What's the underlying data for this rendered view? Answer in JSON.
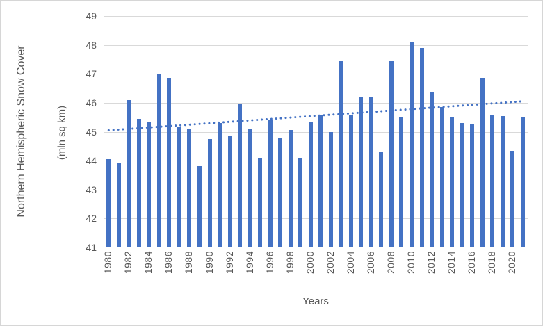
{
  "chart_data": {
    "type": "bar",
    "title": "Northern Hemispheric Snow Cover",
    "ylabel": "(mln sq km)",
    "xlabel": "Years",
    "ylim": [
      41,
      49
    ],
    "yticks": [
      49,
      48,
      47,
      46,
      45,
      44,
      43,
      42,
      41
    ],
    "xtick_labels": [
      "1980",
      "1982",
      "1984",
      "1986",
      "1988",
      "1990",
      "1992",
      "1994",
      "1996",
      "1998",
      "2000",
      "2002",
      "2004",
      "2006",
      "2008",
      "2010",
      "2012",
      "2014",
      "2016",
      "2018",
      "2020"
    ],
    "grid": "horizontal",
    "legend": "none",
    "years": [
      1980,
      1981,
      1982,
      1983,
      1984,
      1985,
      1986,
      1987,
      1988,
      1989,
      1990,
      1991,
      1992,
      1993,
      1994,
      1995,
      1996,
      1997,
      1998,
      1999,
      2000,
      2001,
      2002,
      2003,
      2004,
      2005,
      2006,
      2007,
      2008,
      2009,
      2010,
      2011,
      2012,
      2013,
      2014,
      2015,
      2016,
      2017,
      2018,
      2019,
      2020,
      2021
    ],
    "values": [
      44.05,
      43.9,
      46.1,
      45.45,
      45.35,
      47.0,
      46.85,
      45.15,
      45.1,
      43.8,
      44.75,
      45.3,
      44.85,
      45.95,
      45.1,
      44.1,
      45.4,
      44.8,
      45.05,
      44.1,
      45.35,
      45.6,
      45.0,
      47.45,
      45.6,
      46.2,
      46.2,
      44.3,
      47.45,
      45.5,
      48.1,
      47.9,
      46.35,
      45.85,
      45.5,
      45.3,
      45.25,
      46.85,
      45.6,
      45.55,
      44.35,
      45.5
    ],
    "trendline": {
      "style": "dotted",
      "start_value": 45.05,
      "end_value": 46.05
    },
    "colors": {
      "bar": "#4472C4",
      "trendline": "#4472C4",
      "gridline": "#D9D9D9",
      "axis_text": "#595959",
      "border": "#D6D6D6",
      "background": "#FFFFFF"
    }
  }
}
